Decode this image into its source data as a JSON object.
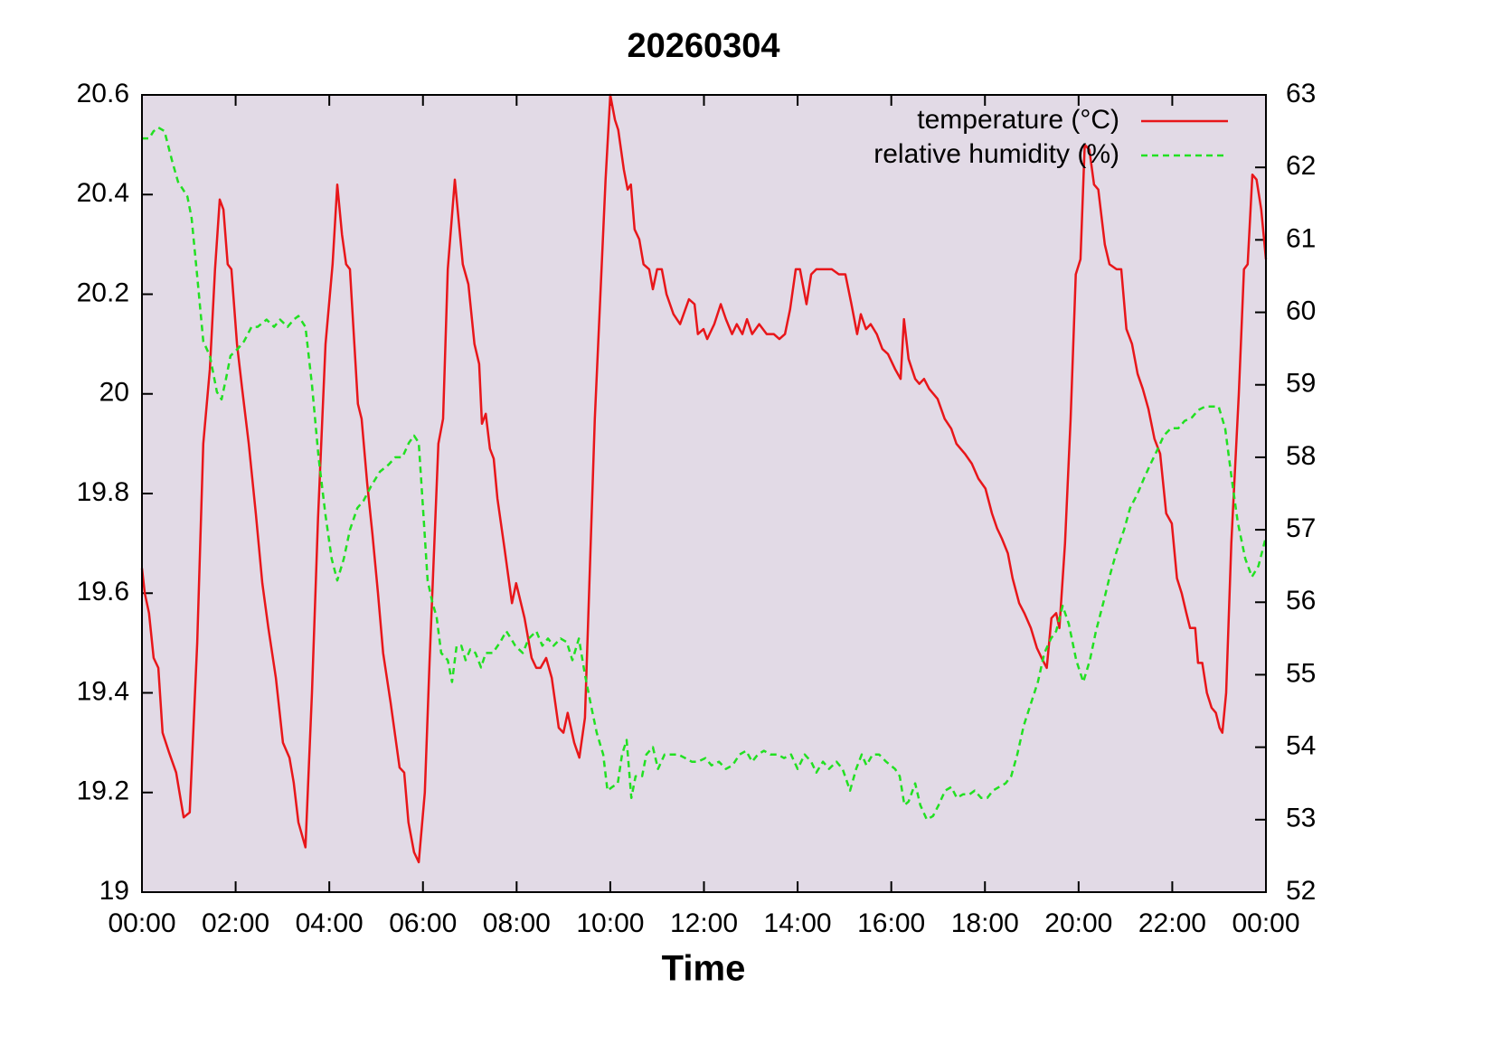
{
  "chart_data": {
    "type": "line",
    "title": "20260304",
    "xlabel": "Time",
    "xlim": [
      0,
      24
    ],
    "xticks": [
      {
        "value": 0,
        "label": "00:00"
      },
      {
        "value": 2,
        "label": "02:00"
      },
      {
        "value": 4,
        "label": "04:00"
      },
      {
        "value": 6,
        "label": "06:00"
      },
      {
        "value": 8,
        "label": "08:00"
      },
      {
        "value": 10,
        "label": "10:00"
      },
      {
        "value": 12,
        "label": "12:00"
      },
      {
        "value": 14,
        "label": "14:00"
      },
      {
        "value": 16,
        "label": "16:00"
      },
      {
        "value": 18,
        "label": "18:00"
      },
      {
        "value": 20,
        "label": "20:00"
      },
      {
        "value": 22,
        "label": "22:00"
      },
      {
        "value": 24,
        "label": "00:00"
      }
    ],
    "ylim": [
      19,
      20.6
    ],
    "yticks": [
      19,
      19.2,
      19.4,
      19.6,
      19.8,
      20,
      20.2,
      20.4,
      20.6
    ],
    "y2lim": [
      52,
      63
    ],
    "y2ticks": [
      52,
      53,
      54,
      55,
      56,
      57,
      58,
      59,
      60,
      61,
      62,
      63
    ],
    "legend": "top-right",
    "background": "#e2dae6",
    "series": [
      {
        "name": "temperature (°C)",
        "color": "#e8161a",
        "style": "solid",
        "x": [
          0,
          0.06,
          0.15,
          0.25,
          0.35,
          0.44,
          0.58,
          0.73,
          0.89,
          1.02,
          1.18,
          1.31,
          1.45,
          1.56,
          1.66,
          1.74,
          1.83,
          1.91,
          2.03,
          2.14,
          2.28,
          2.43,
          2.57,
          2.7,
          2.86,
          3.01,
          3.15,
          3.24,
          3.34,
          3.49,
          3.63,
          3.76,
          3.92,
          4.07,
          4.17,
          4.27,
          4.36,
          4.44,
          4.61,
          4.69,
          4.81,
          4.92,
          5.04,
          5.15,
          5.31,
          5.5,
          5.6,
          5.69,
          5.81,
          5.91,
          6.04,
          6.14,
          6.33,
          6.43,
          6.53,
          6.68,
          6.85,
          6.97,
          7.1,
          7.2,
          7.26,
          7.34,
          7.43,
          7.51,
          7.59,
          7.74,
          7.9,
          7.99,
          8.17,
          8.32,
          8.42,
          8.51,
          8.63,
          8.75,
          8.9,
          9.0,
          9.09,
          9.23,
          9.34,
          9.46,
          9.67,
          9.9,
          10.0,
          10.1,
          10.17,
          10.29,
          10.37,
          10.44,
          10.52,
          10.62,
          10.71,
          10.83,
          10.91,
          11.0,
          11.1,
          11.2,
          11.35,
          11.49,
          11.68,
          11.8,
          11.87,
          11.99,
          12.07,
          12.22,
          12.36,
          12.47,
          12.6,
          12.7,
          12.82,
          12.92,
          13.03,
          13.18,
          13.34,
          13.49,
          13.61,
          13.73,
          13.84,
          13.96,
          14.05,
          14.19,
          14.29,
          14.4,
          14.73,
          14.88,
          15.02,
          15.15,
          15.27,
          15.35,
          15.46,
          15.56,
          15.69,
          15.81,
          15.93,
          16.08,
          16.2,
          16.27,
          16.37,
          16.51,
          16.6,
          16.7,
          16.81,
          16.99,
          17.14,
          17.28,
          17.39,
          17.57,
          17.72,
          17.86,
          18.01,
          18.15,
          18.26,
          18.36,
          18.49,
          18.59,
          18.73,
          18.84,
          18.98,
          19.11,
          19.21,
          19.32,
          19.42,
          19.52,
          19.59,
          19.71,
          19.83,
          19.94,
          20.04,
          20.13,
          20.23,
          20.33,
          20.42,
          20.56,
          20.66,
          20.81,
          20.91,
          21.02,
          21.14,
          21.26,
          21.37,
          21.49,
          21.62,
          21.74,
          21.87,
          21.99,
          22.1,
          22.2,
          22.3,
          22.38,
          22.49,
          22.55,
          22.64,
          22.74,
          22.84,
          22.93,
          23.01,
          23.07,
          23.15,
          23.26,
          23.42,
          23.53,
          23.61,
          23.71,
          23.8,
          23.9,
          24.0
        ],
        "values": [
          19.65,
          19.6,
          19.56,
          19.47,
          19.45,
          19.32,
          19.28,
          19.24,
          19.15,
          19.16,
          19.5,
          19.9,
          20.05,
          20.25,
          20.39,
          20.37,
          20.26,
          20.25,
          20.1,
          20.01,
          19.9,
          19.76,
          19.62,
          19.53,
          19.43,
          19.3,
          19.27,
          19.22,
          19.14,
          19.09,
          19.4,
          19.75,
          20.1,
          20.26,
          20.42,
          20.32,
          20.26,
          20.25,
          19.98,
          19.95,
          19.82,
          19.72,
          19.6,
          19.48,
          19.38,
          19.25,
          19.24,
          19.14,
          19.08,
          19.06,
          19.2,
          19.46,
          19.9,
          19.95,
          20.25,
          20.43,
          20.26,
          20.22,
          20.1,
          20.06,
          19.94,
          19.96,
          19.89,
          19.87,
          19.79,
          19.69,
          19.58,
          19.62,
          19.55,
          19.47,
          19.45,
          19.45,
          19.47,
          19.43,
          19.33,
          19.32,
          19.36,
          19.3,
          19.27,
          19.35,
          19.95,
          20.43,
          20.6,
          20.55,
          20.53,
          20.45,
          20.41,
          20.42,
          20.33,
          20.31,
          20.26,
          20.25,
          20.21,
          20.25,
          20.25,
          20.2,
          20.16,
          20.14,
          20.19,
          20.18,
          20.12,
          20.13,
          20.11,
          20.14,
          20.18,
          20.15,
          20.12,
          20.14,
          20.12,
          20.15,
          20.12,
          20.14,
          20.12,
          20.12,
          20.11,
          20.12,
          20.17,
          20.25,
          20.25,
          20.18,
          20.24,
          20.25,
          20.25,
          20.24,
          20.24,
          20.18,
          20.12,
          20.16,
          20.13,
          20.14,
          20.12,
          20.09,
          20.08,
          20.05,
          20.03,
          20.15,
          20.07,
          20.03,
          20.02,
          20.03,
          20.01,
          19.99,
          19.95,
          19.93,
          19.9,
          19.88,
          19.86,
          19.83,
          19.81,
          19.76,
          19.73,
          19.71,
          19.68,
          19.63,
          19.58,
          19.56,
          19.53,
          19.49,
          19.47,
          19.45,
          19.55,
          19.56,
          19.53,
          19.7,
          19.95,
          20.24,
          20.27,
          20.5,
          20.49,
          20.42,
          20.41,
          20.3,
          20.26,
          20.25,
          20.25,
          20.13,
          20.1,
          20.04,
          20.01,
          19.97,
          19.91,
          19.88,
          19.76,
          19.74,
          19.63,
          19.6,
          19.56,
          19.53,
          19.53,
          19.46,
          19.46,
          19.4,
          19.37,
          19.36,
          19.33,
          19.32,
          19.4,
          19.7,
          20.0,
          20.25,
          20.26,
          20.44,
          20.43,
          20.37,
          20.27
        ]
      },
      {
        "name": "relative humidity (%)",
        "color": "#22e022",
        "style": "dashed",
        "axis": "y2",
        "x": [
          0,
          0.15,
          0.25,
          0.35,
          0.48,
          0.64,
          0.77,
          0.87,
          0.97,
          1.06,
          1.18,
          1.31,
          1.45,
          1.6,
          1.7,
          1.8,
          1.89,
          2.05,
          2.18,
          2.34,
          2.47,
          2.66,
          2.82,
          2.95,
          3.11,
          3.24,
          3.34,
          3.49,
          3.63,
          3.77,
          3.92,
          4.05,
          4.17,
          4.31,
          4.44,
          4.6,
          4.73,
          4.89,
          5.08,
          5.27,
          5.41,
          5.56,
          5.7,
          5.81,
          5.91,
          6.0,
          6.1,
          6.2,
          6.29,
          6.39,
          6.53,
          6.62,
          6.72,
          6.82,
          6.91,
          7.01,
          7.12,
          7.24,
          7.34,
          7.49,
          7.65,
          7.78,
          7.88,
          7.97,
          8.13,
          8.26,
          8.42,
          8.55,
          8.67,
          8.79,
          8.94,
          9.07,
          9.19,
          9.33,
          9.46,
          9.58,
          9.71,
          9.85,
          9.94,
          10.04,
          10.16,
          10.25,
          10.35,
          10.45,
          10.54,
          10.68,
          10.77,
          10.91,
          11.02,
          11.16,
          11.29,
          11.45,
          11.6,
          11.74,
          11.87,
          12.03,
          12.16,
          12.32,
          12.47,
          12.61,
          12.76,
          12.9,
          13.03,
          13.15,
          13.28,
          13.42,
          13.57,
          13.71,
          13.86,
          14.0,
          14.15,
          14.29,
          14.4,
          14.54,
          14.67,
          14.83,
          14.96,
          15.12,
          15.25,
          15.37,
          15.47,
          15.6,
          15.74,
          15.89,
          16.08,
          16.18,
          16.28,
          16.37,
          16.51,
          16.62,
          16.76,
          16.89,
          17.01,
          17.15,
          17.28,
          17.4,
          17.53,
          17.67,
          17.78,
          17.92,
          18.05,
          18.17,
          18.3,
          18.44,
          18.56,
          18.69,
          18.83,
          18.98,
          19.13,
          19.27,
          19.41,
          19.52,
          19.66,
          19.79,
          19.95,
          20.1,
          20.24,
          20.37,
          20.53,
          20.68,
          20.81,
          20.97,
          21.1,
          21.26,
          21.39,
          21.53,
          21.68,
          21.82,
          21.97,
          22.13,
          22.26,
          22.42,
          22.55,
          22.7,
          22.84,
          22.99,
          23.13,
          23.27,
          23.4,
          23.56,
          23.7,
          23.84,
          24
        ],
        "values": [
          62.4,
          62.4,
          62.5,
          62.55,
          62.5,
          62.1,
          61.8,
          61.7,
          61.6,
          61.3,
          60.5,
          59.6,
          59.4,
          58.9,
          58.8,
          59.1,
          59.4,
          59.5,
          59.6,
          59.8,
          59.8,
          59.9,
          59.8,
          59.9,
          59.8,
          59.9,
          59.95,
          59.8,
          59.0,
          58.0,
          57.2,
          56.6,
          56.3,
          56.6,
          57.0,
          57.3,
          57.4,
          57.6,
          57.8,
          57.9,
          58.0,
          58.0,
          58.2,
          58.3,
          58.2,
          57.3,
          56.3,
          56.0,
          55.8,
          55.3,
          55.2,
          54.9,
          55.4,
          55.4,
          55.2,
          55.35,
          55.3,
          55.1,
          55.3,
          55.3,
          55.45,
          55.6,
          55.5,
          55.4,
          55.3,
          55.5,
          55.6,
          55.4,
          55.5,
          55.4,
          55.5,
          55.45,
          55.2,
          55.5,
          55.0,
          54.6,
          54.2,
          53.9,
          53.4,
          53.45,
          53.5,
          53.9,
          54.1,
          53.3,
          53.6,
          53.6,
          53.9,
          54.0,
          53.7,
          53.9,
          53.9,
          53.9,
          53.85,
          53.8,
          53.8,
          53.85,
          53.75,
          53.8,
          53.7,
          53.75,
          53.9,
          53.95,
          53.8,
          53.9,
          53.95,
          53.9,
          53.9,
          53.85,
          53.9,
          53.7,
          53.9,
          53.8,
          53.65,
          53.8,
          53.7,
          53.8,
          53.7,
          53.4,
          53.7,
          53.9,
          53.75,
          53.9,
          53.9,
          53.8,
          53.7,
          53.6,
          53.2,
          53.25,
          53.5,
          53.2,
          53.0,
          53.05,
          53.2,
          53.4,
          53.45,
          53.3,
          53.35,
          53.35,
          53.4,
          53.3,
          53.3,
          53.4,
          53.45,
          53.5,
          53.6,
          53.9,
          54.3,
          54.6,
          54.9,
          55.3,
          55.5,
          55.6,
          55.95,
          55.7,
          55.2,
          54.9,
          55.2,
          55.6,
          56.0,
          56.4,
          56.7,
          57.0,
          57.3,
          57.5,
          57.7,
          57.9,
          58.1,
          58.3,
          58.4,
          58.4,
          58.5,
          58.55,
          58.65,
          58.7,
          58.7,
          58.7,
          58.4,
          57.7,
          57.1,
          56.6,
          56.35,
          56.5,
          56.9
        ]
      }
    ]
  }
}
